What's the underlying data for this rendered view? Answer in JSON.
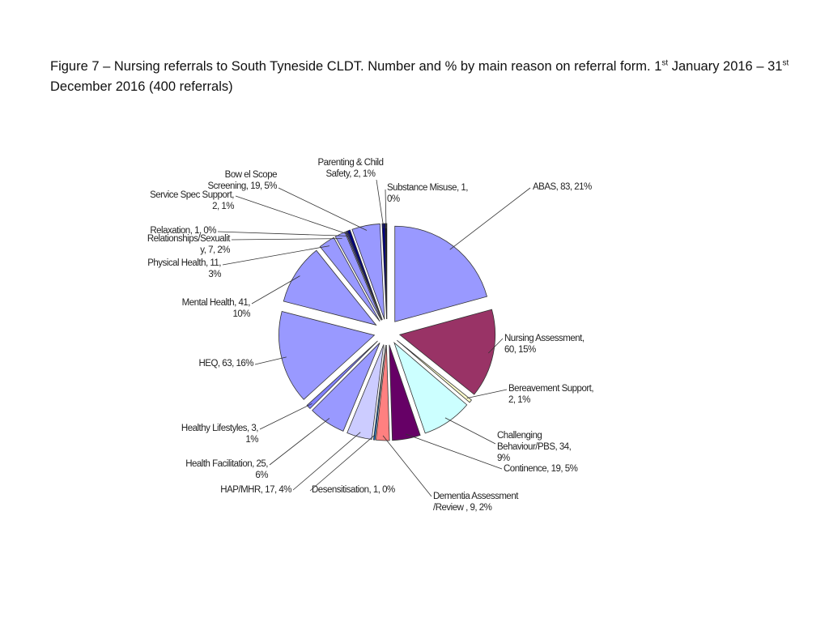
{
  "title": {
    "part1": "Figure 7 – Nursing referrals to South Tyneside CLDT. Number and % by main reason on referral form. 1",
    "sup1": "st",
    "part2": " January 2016 – 31",
    "sup2": "st",
    "part3": " December 2016 (400 referrals)"
  },
  "chart_data": {
    "type": "pie",
    "title": "",
    "total": 400,
    "slices": [
      {
        "name": "ABAS",
        "value": 83,
        "percent": "21%",
        "label": [
          "ABAS, 83, 21%"
        ],
        "color": "#9999ff"
      },
      {
        "name": "Nursing Assessment",
        "value": 60,
        "percent": "15%",
        "label": [
          "Nursing Assessment,",
          "60, 15%"
        ],
        "color": "#993366"
      },
      {
        "name": "Bereavement Support",
        "value": 2,
        "percent": "1%",
        "label": [
          "Bereavement Support,",
          "2, 1%"
        ],
        "color": "#ffffcc"
      },
      {
        "name": "Challenging Behaviour/PBS",
        "value": 34,
        "percent": "9%",
        "label": [
          "Challenging",
          "Behaviour/PBS, 34,",
          "9%"
        ],
        "color": "#ccffff"
      },
      {
        "name": "Continence",
        "value": 19,
        "percent": "5%",
        "label": [
          "Continence, 19, 5%"
        ],
        "color": "#660066"
      },
      {
        "name": "Dementia Assessment /Review",
        "value": 9,
        "percent": "2%",
        "label": [
          "Dementia Assessment",
          "/Review , 9, 2%"
        ],
        "color": "#ff8080"
      },
      {
        "name": "Desensitisation",
        "value": 1,
        "percent": "0%",
        "label": [
          "Desensitisation, 1, 0%"
        ],
        "color": "#0066cc"
      },
      {
        "name": "HAP/MHR",
        "value": 17,
        "percent": "4%",
        "label": [
          "HAP/MHR,  17, 4%"
        ],
        "color": "#ccccff"
      },
      {
        "name": "Health Facilitation",
        "value": 25,
        "percent": "6%",
        "label": [
          "Health Facilitation, 25,",
          "6%"
        ],
        "color": "#9999ff"
      },
      {
        "name": "Healthy Lifestyles",
        "value": 3,
        "percent": "1%",
        "label": [
          "Healthy Lifestyles, 3,",
          "1%"
        ],
        "color": "#8080ff"
      },
      {
        "name": "HEQ",
        "value": 63,
        "percent": "16%",
        "label": [
          "HEQ, 63, 16%"
        ],
        "color": "#9999ff"
      },
      {
        "name": "Mental Health",
        "value": 41,
        "percent": "10%",
        "label": [
          "Mental Health, 41,",
          "10%"
        ],
        "color": "#9999ff"
      },
      {
        "name": "Physical Health",
        "value": 11,
        "percent": "3%",
        "label": [
          "Physical Health, 11,",
          "3%"
        ],
        "color": "#9999ff"
      },
      {
        "name": "Relationships/Sexuality",
        "value": 7,
        "percent": "2%",
        "label": [
          "Relationships/Sexualit",
          "y, 7, 2%"
        ],
        "color": "#9999ff"
      },
      {
        "name": "Relaxation",
        "value": 1,
        "percent": "0%",
        "label": [
          "Relaxation, 1, 0%"
        ],
        "color": "#333399"
      },
      {
        "name": "Service Spec Support",
        "value": 2,
        "percent": "1%",
        "label": [
          "Service Spec Support,",
          "2, 1%"
        ],
        "color": "#000080"
      },
      {
        "name": "Bowel Scope Screening",
        "value": 19,
        "percent": "5%",
        "label": [
          "Bow el Scope",
          "Screening, 19, 5%"
        ],
        "color": "#9999ff"
      },
      {
        "name": "Parenting & Child Safety",
        "value": 2,
        "percent": "1%",
        "label": [
          "Parenting & Child",
          "Safety, 2, 1%"
        ],
        "color": "#000080"
      },
      {
        "name": "Substance Misuse",
        "value": 1,
        "percent": "0%",
        "label": [
          "Substance Misuse, 1,",
          "0%"
        ],
        "color": "#000000"
      }
    ]
  }
}
